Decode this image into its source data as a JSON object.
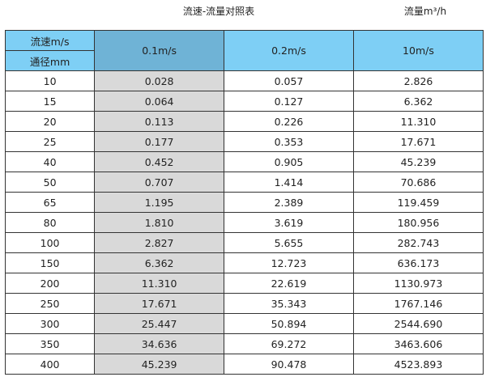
{
  "title": "流速-流量对照表",
  "unit": "流量m³/h",
  "header": {
    "velocity_label": "流速m/s",
    "diameter_label": "通径mm",
    "cols": [
      "0.1m/s",
      "0.2m/s",
      "10m/s"
    ]
  },
  "colors": {
    "header": "#7ecff5",
    "header_highlight": "#6fb3d6",
    "highlight_column": "#d9d9d9"
  },
  "rows": [
    [
      "10",
      "0.028",
      "0.057",
      "2.826"
    ],
    [
      "15",
      "0.064",
      "0.127",
      "6.362"
    ],
    [
      "20",
      "0.113",
      "0.226",
      "11.310"
    ],
    [
      "25",
      "0.177",
      "0.353",
      "17.671"
    ],
    [
      "40",
      "0.452",
      "0.905",
      "45.239"
    ],
    [
      "50",
      "0.707",
      "1.414",
      "70.686"
    ],
    [
      "65",
      "1.195",
      "2.389",
      "119.459"
    ],
    [
      "80",
      "1.810",
      "3.619",
      "180.956"
    ],
    [
      "100",
      "2.827",
      "5.655",
      "282.743"
    ],
    [
      "150",
      "6.362",
      "12.723",
      "636.173"
    ],
    [
      "200",
      "11.310",
      "22.619",
      "1130.973"
    ],
    [
      "250",
      "17.671",
      "35.343",
      "1767.146"
    ],
    [
      "300",
      "25.447",
      "50.894",
      "2544.690"
    ],
    [
      "350",
      "34.636",
      "69.272",
      "3463.606"
    ],
    [
      "400",
      "45.239",
      "90.478",
      "4523.893"
    ]
  ]
}
